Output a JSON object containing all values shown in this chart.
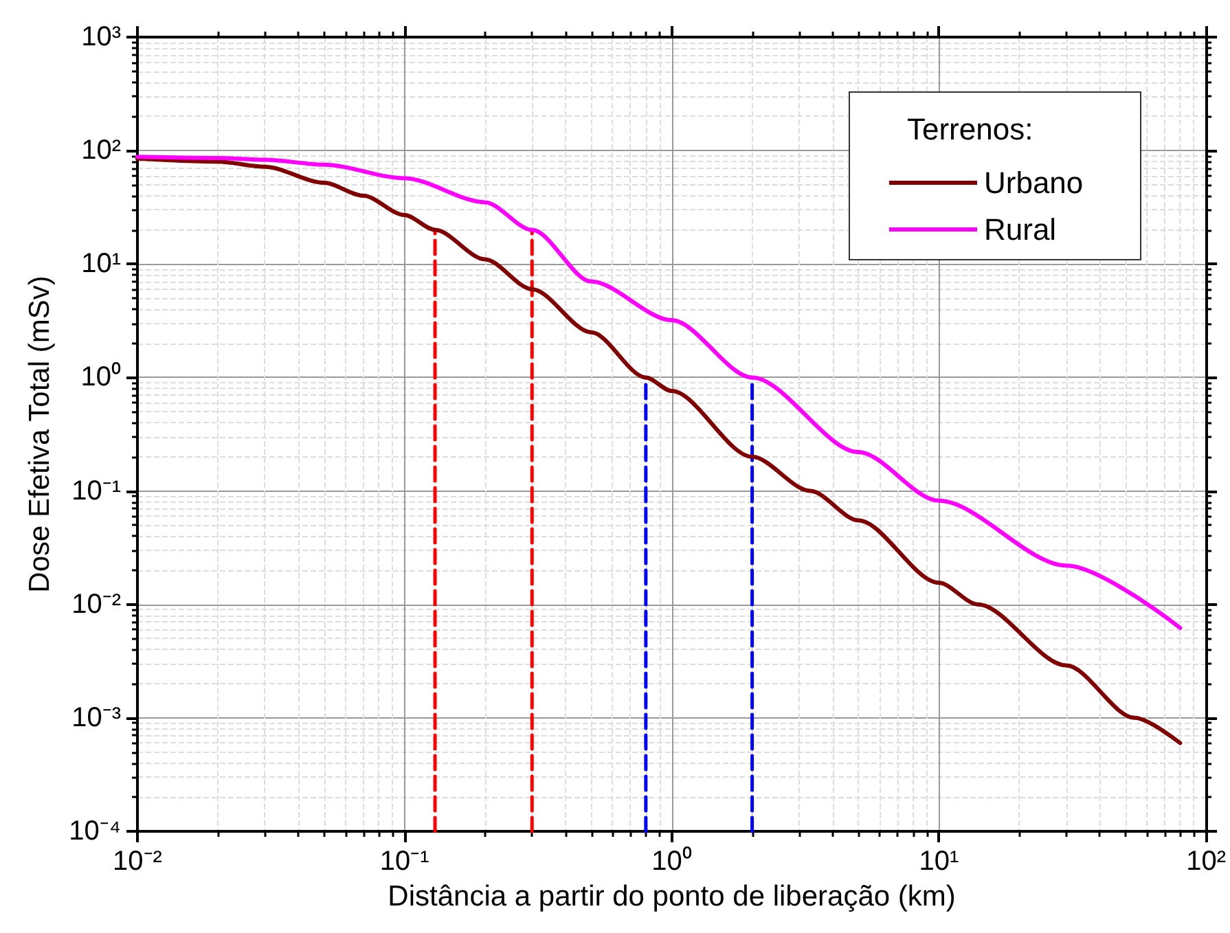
{
  "chart_data": {
    "type": "line",
    "xlabel": "Distância a partir do ponto de liberação (km)",
    "ylabel": "Dose Efetiva Total (mSv)",
    "legend_title": "Terrenos:",
    "log": "xy",
    "grid": true,
    "legend": "top right",
    "line_style": "solid",
    "marker": "none",
    "xlim": [
      0.01,
      100
    ],
    "ylim": [
      0.0001,
      1000
    ],
    "xticks": [
      {
        "value": 0.01,
        "label": "10⁻²"
      },
      {
        "value": 0.1,
        "label": "10⁻¹"
      },
      {
        "value": 1,
        "label": "10⁰"
      },
      {
        "value": 10,
        "label": "10¹"
      },
      {
        "value": 100,
        "label": "10²"
      }
    ],
    "yticks": [
      {
        "value": 0.0001,
        "label": "10⁻⁴"
      },
      {
        "value": 0.001,
        "label": "10⁻³"
      },
      {
        "value": 0.01,
        "label": "10⁻²"
      },
      {
        "value": 0.1,
        "label": "10⁻¹"
      },
      {
        "value": 1,
        "label": "10⁰"
      },
      {
        "value": 10,
        "label": "10¹"
      },
      {
        "value": 100,
        "label": "10²"
      },
      {
        "value": 1000,
        "label": "10³"
      }
    ],
    "series": [
      {
        "name": "Urbano",
        "color": "#800000",
        "x": [
          0.01,
          0.02,
          0.03,
          0.05,
          0.07,
          0.1,
          0.13,
          0.2,
          0.3,
          0.5,
          0.8,
          1,
          2,
          3.3,
          5,
          10,
          14,
          30,
          54,
          80
        ],
        "values": [
          85,
          80,
          72,
          52,
          40,
          27,
          20,
          11,
          6,
          2.5,
          1,
          0.76,
          0.2,
          0.1,
          0.055,
          0.0155,
          0.01,
          0.0029,
          0.001,
          0.0006
        ]
      },
      {
        "name": "Rural",
        "color": "#ff00ff",
        "x": [
          0.01,
          0.02,
          0.03,
          0.05,
          0.1,
          0.2,
          0.3,
          0.5,
          1,
          2,
          5,
          10,
          30,
          80
        ],
        "values": [
          88,
          86,
          83,
          75,
          57,
          35,
          20,
          7,
          3.2,
          1,
          0.22,
          0.082,
          0.022,
          0.0062
        ]
      },
      {
        "color": "#ff0000",
        "line_style": "dashed",
        "x": [
          0.13,
          0.13
        ],
        "values": [
          0.0001,
          20
        ]
      },
      {
        "color": "#ff0000",
        "line_style": "dashed",
        "x": [
          0.3,
          0.3
        ],
        "values": [
          0.0001,
          20
        ]
      },
      {
        "color": "#0000ff",
        "line_style": "dashed",
        "x": [
          0.8,
          0.8
        ],
        "values": [
          0.0001,
          1
        ]
      },
      {
        "color": "#0000ff",
        "line_style": "dashed",
        "x": [
          2,
          2
        ],
        "values": [
          0.0001,
          1
        ]
      }
    ]
  }
}
